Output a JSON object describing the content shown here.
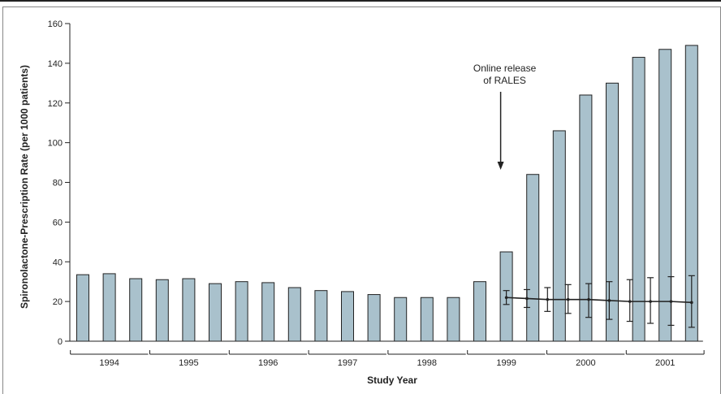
{
  "chart_data": {
    "type": "bar",
    "xlabel": "Study Year",
    "ylabel": "Spironolactone-Prescription Rate (per 1000 patients)",
    "ylim": [
      0,
      160
    ],
    "yticks": [
      0,
      20,
      40,
      60,
      80,
      100,
      120,
      140,
      160
    ],
    "years": [
      "1994",
      "1995",
      "1996",
      "1997",
      "1998",
      "1999",
      "2000",
      "2001"
    ],
    "bars_per_year": 3,
    "values": [
      33.5,
      34,
      31.5,
      31,
      31.5,
      29,
      30,
      29.5,
      27,
      25.5,
      25,
      23.5,
      22,
      22,
      22,
      30,
      45,
      84,
      106,
      124,
      130,
      143,
      147,
      149
    ],
    "expected_series": {
      "start_index": 16,
      "values": [
        22,
        21.5,
        21,
        21,
        21,
        20.5,
        20,
        20,
        20,
        19.5
      ],
      "error_low": [
        18.5,
        17,
        15,
        14,
        12,
        11,
        10,
        9,
        8,
        7
      ],
      "error_high": [
        25.5,
        26,
        27,
        28.5,
        29,
        30,
        31,
        32,
        32.5,
        33
      ]
    },
    "annotation": {
      "lines": [
        "Online release",
        "of RALES"
      ],
      "points_to_index": 16
    },
    "colors": {
      "bar_fill": "#a9c1cc",
      "bar_stroke": "#222222",
      "line": "#222222"
    }
  }
}
